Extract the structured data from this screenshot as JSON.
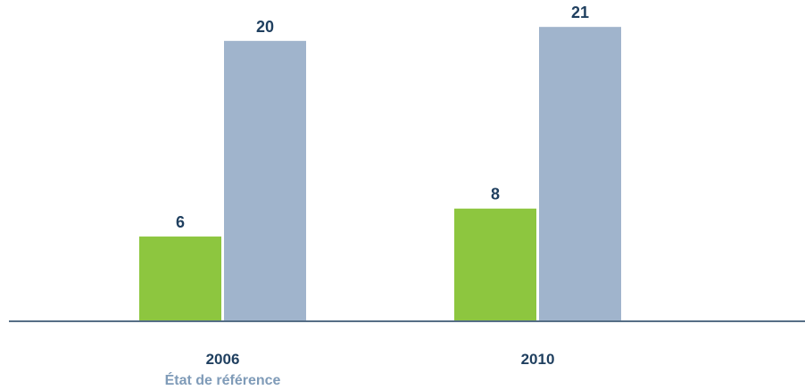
{
  "chart_data": {
    "type": "bar",
    "categories": [
      "2006",
      "2010"
    ],
    "category_sublabels": [
      "État de référence",
      ""
    ],
    "series": [
      {
        "color": "#8dc63f",
        "values": [
          6,
          8
        ]
      },
      {
        "color": "#a0b4cc",
        "values": [
          20,
          21
        ]
      }
    ],
    "ylim": [
      0,
      20.5
    ],
    "grid": false,
    "axis_color": "#1f3f5f",
    "label_color": "#1f3f5f",
    "sublabel_color": "#7f9bb8"
  }
}
